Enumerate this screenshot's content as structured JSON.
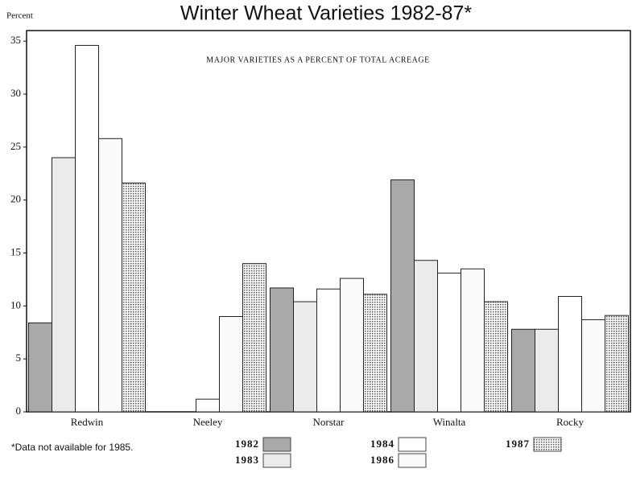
{
  "chart_data": {
    "type": "bar",
    "title": "Winter Wheat Varieties 1982-87*",
    "subtitle": "MAJOR VARIETIES AS A PERCENT OF TOTAL ACREAGE",
    "y_label": "Percent",
    "footnote": "*Data not available for 1985.",
    "categories": [
      "Redwin",
      "Neeley",
      "Norstar",
      "Winalta",
      "Rocky"
    ],
    "series": [
      {
        "name": "1982",
        "color": "#a9a9a9",
        "values": [
          8.4,
          null,
          11.7,
          21.9,
          7.8
        ]
      },
      {
        "name": "1983",
        "color": "#ebebeb",
        "values": [
          24.0,
          null,
          10.4,
          14.3,
          7.8
        ]
      },
      {
        "name": "1984",
        "color": "#ffffff",
        "values": [
          34.6,
          1.2,
          11.6,
          13.1,
          10.9
        ]
      },
      {
        "name": "1986",
        "color": "#fafafa",
        "values": [
          25.8,
          9.0,
          12.6,
          13.5,
          8.7
        ]
      },
      {
        "name": "1987",
        "color": "#555555",
        "pattern": "dots",
        "values": [
          21.6,
          14.0,
          11.1,
          10.4,
          9.1
        ]
      }
    ],
    "ylim": [
      0,
      36
    ],
    "yticks": [
      0,
      5,
      10,
      15,
      20,
      25,
      30,
      35
    ]
  }
}
